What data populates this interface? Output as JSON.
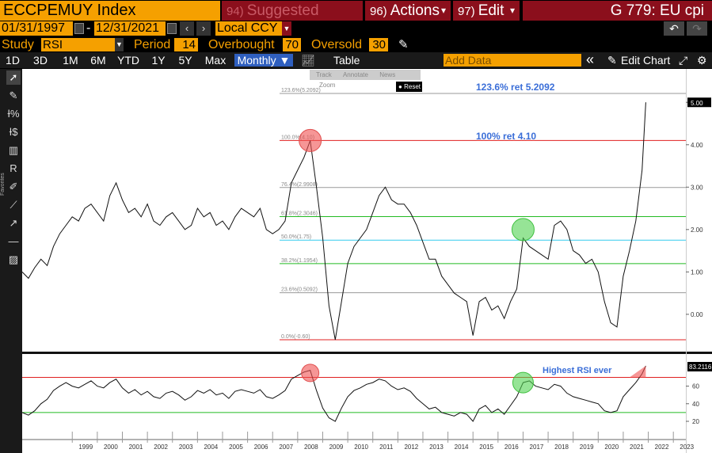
{
  "header": {
    "ticker": "ECCPEMUY Index",
    "menus": [
      {
        "num": "94)",
        "label": "Suggested Charts"
      },
      {
        "num": "96)",
        "label": "Actions"
      },
      {
        "num": "97)",
        "label": "Edit"
      }
    ],
    "code": "G 779: EU cpi"
  },
  "date_range": {
    "start": "01/31/1997",
    "separator": "-",
    "end": "12/31/2021",
    "prev_icon": "‹",
    "next_icon": "›",
    "currency": "Local CCY",
    "undo_icon": "↶",
    "redo_icon": "↷"
  },
  "study": {
    "label": "Study",
    "value": "RSI",
    "period_label": "Period",
    "period": "14",
    "overbought_label": "Overbought",
    "overbought": "70",
    "oversold_label": "Oversold",
    "oversold": "30"
  },
  "toolbar": {
    "periods": [
      "1D",
      "3D",
      "1M",
      "6M",
      "YTD",
      "1Y",
      "5Y",
      "Max",
      "Monthly ▼"
    ],
    "active_period": "Monthly ▼",
    "table": "Table",
    "add_data_placeholder": "Add Data",
    "collapse": "«",
    "edit_chart": "Edit Chart",
    "settings_icon": "⚙"
  },
  "sidebar": {
    "favorites_label": "Favorites",
    "tools": [
      "pointer-icon",
      "pencil-icon",
      "fib-percent-icon",
      "fib-dollar-icon",
      "channel-icon",
      "regression-icon",
      "brush-icon",
      "trendline-icon",
      "arrow-line-icon",
      "horizontal-line-icon",
      "parallel-icon"
    ]
  },
  "chart_mini_toolbar": {
    "items": [
      "Track",
      "Annotate",
      "News",
      "Zoom"
    ],
    "reset": "Reset"
  },
  "chart_data": [
    {
      "type": "line",
      "x_range": [
        1997,
        2023.5
      ],
      "ylim": [
        -0.6,
        5.2
      ],
      "x_ticks": [
        "1999",
        "2000",
        "2001",
        "2002",
        "2003",
        "2004",
        "2005",
        "2006",
        "2007",
        "2008",
        "2009",
        "2010",
        "2011",
        "2012",
        "2013",
        "2014",
        "2015",
        "2016",
        "2017",
        "2018",
        "2019",
        "2020",
        "2021",
        "2022",
        "2023"
      ],
      "y_ticks": [
        "5.00",
        "4.00",
        "3.00",
        "2.00",
        "1.00",
        "0.00"
      ],
      "last_value": "5.00",
      "fib_levels": [
        {
          "label": "123.6%(5.2092)",
          "value": 5.2092,
          "color": "#999999"
        },
        {
          "label": "100.0%(4.10)",
          "value": 4.1,
          "color": "#e02020"
        },
        {
          "label": "76.4%(2.9908)",
          "value": 2.9908,
          "color": "#999999"
        },
        {
          "label": "61.8%(2.3046)",
          "value": 2.3046,
          "color": "#22bb22"
        },
        {
          "label": "50.0%(1.75)",
          "value": 1.75,
          "color": "#33ccee"
        },
        {
          "label": "38.2%(1.1954)",
          "value": 1.1954,
          "color": "#22bb22"
        },
        {
          "label": "23.6%(0.5092)",
          "value": 0.5092,
          "color": "#999999"
        },
        {
          "label": "0.0%(-0.60)",
          "value": -0.6,
          "color": "#e02020"
        }
      ],
      "annotations": [
        {
          "text": "123.6% ret 5.2092"
        },
        {
          "text": "100% ret 4.10"
        }
      ],
      "series": [
        {
          "x": [
            1997.0,
            1997.25,
            1997.5,
            1997.75,
            1998.0,
            1998.25,
            1998.5,
            1998.75,
            1999.0,
            1999.25,
            1999.5,
            1999.75,
            2000.0,
            2000.25,
            2000.5,
            2000.75,
            2001.0,
            2001.25,
            2001.5,
            2001.75,
            2002.0,
            2002.25,
            2002.5,
            2002.75,
            2003.0,
            2003.25,
            2003.5,
            2003.75,
            2004.0,
            2004.25,
            2004.5,
            2004.75,
            2005.0,
            2005.25,
            2005.5,
            2005.75,
            2006.0,
            2006.25,
            2006.5,
            2006.75,
            2007.0,
            2007.25,
            2007.5,
            2007.75,
            2008.0,
            2008.25,
            2008.5,
            2008.75,
            2009.0,
            2009.25,
            2009.5,
            2009.75,
            2010.0,
            2010.25,
            2010.5,
            2010.75,
            2011.0,
            2011.25,
            2011.5,
            2011.75,
            2012.0,
            2012.25,
            2012.5,
            2012.75,
            2013.0,
            2013.25,
            2013.5,
            2013.75,
            2014.0,
            2014.25,
            2014.5,
            2014.75,
            2015.0,
            2015.25,
            2015.5,
            2015.75,
            2016.0,
            2016.25,
            2016.5,
            2016.75,
            2017.0,
            2017.25,
            2017.5,
            2017.75,
            2018.0,
            2018.25,
            2018.5,
            2018.75,
            2019.0,
            2019.25,
            2019.5,
            2019.75,
            2020.0,
            2020.25,
            2020.5,
            2020.75,
            2021.0,
            2021.25,
            2021.5,
            2021.75,
            2021.9
          ],
          "y": [
            1.0,
            0.85,
            1.1,
            1.3,
            1.15,
            1.6,
            1.9,
            2.1,
            2.3,
            2.2,
            2.5,
            2.6,
            2.4,
            2.2,
            2.8,
            3.1,
            2.7,
            2.4,
            2.5,
            2.3,
            2.6,
            2.2,
            2.1,
            2.3,
            2.4,
            2.2,
            2.0,
            2.1,
            2.5,
            2.3,
            2.4,
            2.1,
            2.2,
            2.0,
            2.3,
            2.5,
            2.4,
            2.3,
            2.5,
            2.0,
            1.9,
            2.0,
            2.2,
            3.1,
            3.4,
            3.7,
            4.1,
            3.0,
            1.8,
            0.2,
            -0.6,
            0.3,
            1.2,
            1.6,
            1.8,
            2.0,
            2.4,
            2.8,
            3.0,
            2.7,
            2.6,
            2.6,
            2.4,
            2.1,
            1.7,
            1.3,
            1.3,
            0.9,
            0.7,
            0.5,
            0.4,
            0.3,
            -0.5,
            0.3,
            0.4,
            0.1,
            0.2,
            -0.1,
            0.3,
            0.6,
            1.8,
            1.6,
            1.5,
            1.4,
            1.3,
            2.1,
            2.2,
            2.0,
            1.5,
            1.4,
            1.2,
            1.3,
            1.0,
            0.3,
            -0.2,
            -0.3,
            0.9,
            1.5,
            2.2,
            3.4,
            5.0
          ]
        }
      ],
      "markers": [
        {
          "x": 2008.5,
          "y": 4.1,
          "color": "red"
        },
        {
          "x": 2017.0,
          "y": 2.0,
          "color": "green"
        }
      ]
    },
    {
      "type": "line",
      "title": "RSI",
      "ylim": [
        10,
        88
      ],
      "y_ticks": [
        "60",
        "40",
        "20"
      ],
      "last_value": "83.2116",
      "overbought": 70,
      "oversold": 30,
      "annotations": [
        {
          "text": "Highest RSI ever"
        }
      ],
      "series": [
        {
          "x": [
            1997.0,
            1997.25,
            1997.5,
            1997.75,
            1998.0,
            1998.25,
            1998.5,
            1998.75,
            1999.0,
            1999.25,
            1999.5,
            1999.75,
            2000.0,
            2000.25,
            2000.5,
            2000.75,
            2001.0,
            2001.25,
            2001.5,
            2001.75,
            2002.0,
            2002.25,
            2002.5,
            2002.75,
            2003.0,
            2003.25,
            2003.5,
            2003.75,
            2004.0,
            2004.25,
            2004.5,
            2004.75,
            2005.0,
            2005.25,
            2005.5,
            2005.75,
            2006.0,
            2006.25,
            2006.5,
            2006.75,
            2007.0,
            2007.25,
            2007.5,
            2007.75,
            2008.0,
            2008.25,
            2008.5,
            2008.75,
            2009.0,
            2009.25,
            2009.5,
            2009.75,
            2010.0,
            2010.25,
            2010.5,
            2010.75,
            2011.0,
            2011.25,
            2011.5,
            2011.75,
            2012.0,
            2012.25,
            2012.5,
            2012.75,
            2013.0,
            2013.25,
            2013.5,
            2013.75,
            2014.0,
            2014.25,
            2014.5,
            2014.75,
            2015.0,
            2015.25,
            2015.5,
            2015.75,
            2016.0,
            2016.25,
            2016.5,
            2016.75,
            2017.0,
            2017.25,
            2017.5,
            2017.75,
            2018.0,
            2018.25,
            2018.5,
            2018.75,
            2019.0,
            2019.25,
            2019.5,
            2019.75,
            2020.0,
            2020.25,
            2020.5,
            2020.75,
            2021.0,
            2021.25,
            2021.5,
            2021.75,
            2021.9
          ],
          "y": [
            30,
            27,
            32,
            40,
            45,
            55,
            60,
            64,
            60,
            58,
            62,
            66,
            60,
            58,
            64,
            68,
            58,
            52,
            56,
            50,
            54,
            48,
            46,
            52,
            54,
            50,
            44,
            48,
            55,
            52,
            56,
            50,
            52,
            46,
            54,
            56,
            54,
            52,
            56,
            48,
            46,
            50,
            55,
            68,
            72,
            76,
            78,
            55,
            35,
            24,
            20,
            35,
            48,
            55,
            58,
            62,
            64,
            68,
            66,
            60,
            56,
            58,
            54,
            46,
            40,
            34,
            36,
            30,
            28,
            26,
            30,
            28,
            20,
            34,
            38,
            30,
            34,
            28,
            38,
            48,
            64,
            66,
            60,
            58,
            56,
            62,
            60,
            52,
            48,
            46,
            44,
            42,
            40,
            32,
            30,
            32,
            48,
            56,
            64,
            74,
            83
          ]
        }
      ],
      "markers": [
        {
          "x": 2008.5,
          "y": 75,
          "color": "red"
        },
        {
          "x": 2017.0,
          "y": 64,
          "color": "green"
        }
      ]
    }
  ]
}
